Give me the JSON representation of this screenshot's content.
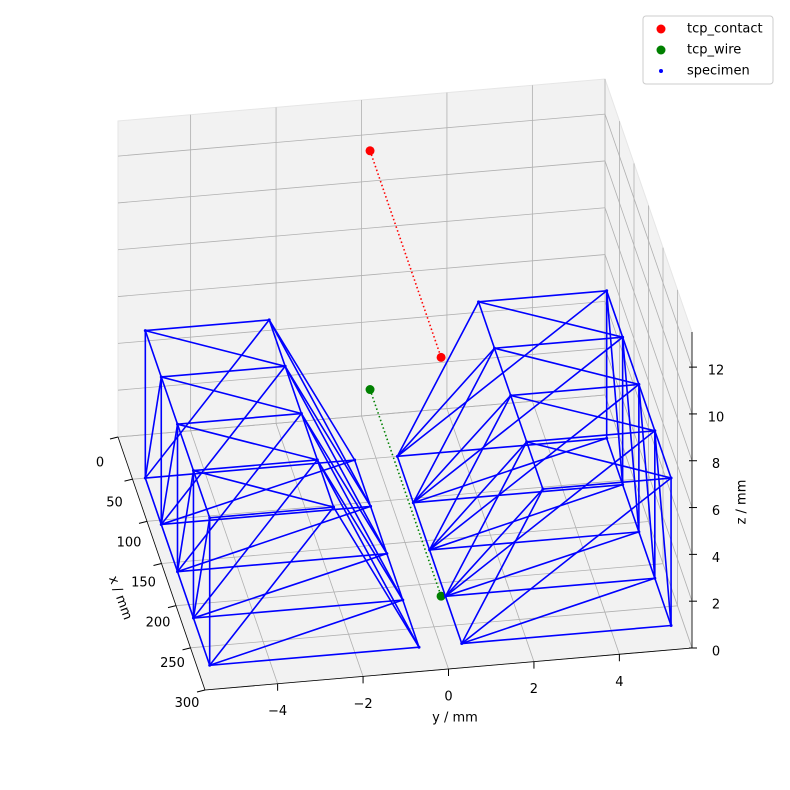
{
  "chart_data": {
    "type": "scatter3d",
    "xlabel": "x / mm",
    "ylabel": "y / mm",
    "zlabel": "z / mm",
    "xlim": [
      0,
      300
    ],
    "ylim": [
      -5.7,
      5.7
    ],
    "zlim": [
      0,
      13.5
    ],
    "xticks": [
      0,
      50,
      100,
      150,
      200,
      250,
      300
    ],
    "yticks": [
      {
        "value": -4,
        "label": "−4"
      },
      {
        "value": -2,
        "label": "−2"
      },
      0,
      2,
      4
    ],
    "zticks": [
      0,
      2,
      4,
      6,
      8,
      10,
      12
    ],
    "grid": true,
    "legend": "upper right",
    "series": [
      {
        "name": "tcp_contact",
        "color": "#ff0000",
        "style": "dotted",
        "x": [
          0,
          245
        ],
        "y": [
          0.2,
          0.2
        ],
        "z": [
          11.3,
          11.3
        ]
      },
      {
        "name": "tcp_wire",
        "color": "#008000",
        "style": "dotted",
        "x": [
          0,
          245
        ],
        "y": [
          0.2,
          0.2
        ],
        "z": [
          1.1,
          1.1
        ]
      },
      {
        "name": "specimen",
        "color": "#0000ff",
        "style": "wireframe",
        "x": [
          50,
          50,
          50,
          50,
          105,
          105,
          105,
          105,
          161,
          161,
          161,
          161,
          216,
          216,
          216,
          216,
          272,
          272,
          272,
          272,
          50,
          50,
          50,
          50,
          105,
          105,
          105,
          105,
          161,
          161,
          161,
          161,
          216,
          216,
          216,
          216,
          272,
          272,
          272,
          272
        ],
        "y": [
          -5.4,
          -5.4,
          -2.5,
          -0.5,
          -5.4,
          -5.4,
          -2.5,
          -0.5,
          -5.4,
          -5.4,
          -2.5,
          -0.5,
          -5.4,
          -5.4,
          -2.5,
          -0.5,
          -5.4,
          -5.4,
          -2.5,
          -0.5,
          0.5,
          2.4,
          5.4,
          5.4,
          0.5,
          2.4,
          5.4,
          5.4,
          0.5,
          2.4,
          5.4,
          5.4,
          0.5,
          2.4,
          5.4,
          5.4,
          0.5,
          2.4,
          5.4,
          5.4
        ],
        "z": [
          0,
          6.3,
          6.3,
          0,
          0,
          6.3,
          6.3,
          0,
          0,
          6.3,
          6.3,
          0,
          0,
          6.3,
          6.3,
          0,
          0,
          6.3,
          6.3,
          0,
          0,
          6.3,
          6.3,
          0,
          0,
          6.3,
          6.3,
          0,
          0,
          6.3,
          6.3,
          0,
          0,
          6.3,
          6.3,
          0,
          0,
          6.3,
          6.3,
          0
        ]
      }
    ]
  }
}
